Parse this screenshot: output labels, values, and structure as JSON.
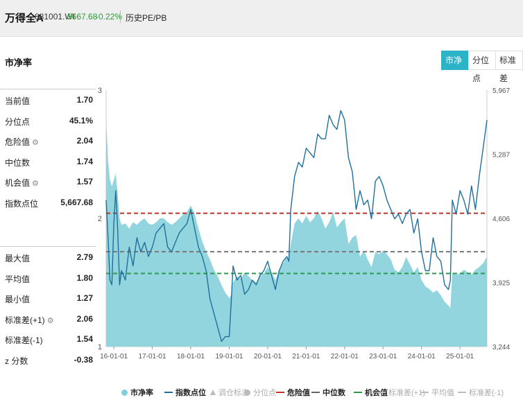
{
  "header": {
    "name": "万得全A",
    "code": "881001.WI",
    "price": "5667.68",
    "change": "-0.22%",
    "history_link": "历史PE/PB"
  },
  "section_title": "市净率",
  "tabs": [
    {
      "label": "市净率",
      "active": true
    },
    {
      "label": "分位点",
      "active": false
    },
    {
      "label": "标准差",
      "active": false
    }
  ],
  "stats_top": [
    {
      "label": "当前值",
      "value": "1.70",
      "gear": false
    },
    {
      "label": "分位点",
      "value": "45.1%",
      "gear": false
    },
    {
      "label": "危险值",
      "value": "2.04",
      "gear": true
    },
    {
      "label": "中位数",
      "value": "1.74",
      "gear": false
    },
    {
      "label": "机会值",
      "value": "1.57",
      "gear": true
    },
    {
      "label": "指数点位",
      "value": "5,667.68",
      "gear": false
    }
  ],
  "stats_bottom": [
    {
      "label": "最大值",
      "value": "2.79",
      "gear": false
    },
    {
      "label": "平均值",
      "value": "1.80",
      "gear": false
    },
    {
      "label": "最小值",
      "value": "1.27",
      "gear": false
    },
    {
      "label": "标准差(+1)",
      "value": "2.06",
      "gear": true
    },
    {
      "label": "标准差(-1)",
      "value": "1.54",
      "gear": false
    },
    {
      "label": "z 分数",
      "value": "-0.38",
      "gear": false
    }
  ],
  "legend": [
    {
      "label": "市净率",
      "type": "circle",
      "color": "#7fd0dc",
      "active": true
    },
    {
      "label": "指数点位",
      "type": "line",
      "color": "#1f6f9c",
      "active": true
    },
    {
      "label": "调仓标志",
      "type": "triangle",
      "color": "#bbbbbb",
      "active": false
    },
    {
      "label": "分位点",
      "type": "circle",
      "color": "#bbbbbb",
      "active": false
    },
    {
      "label": "危险值",
      "type": "dash",
      "color": "#c0322b",
      "active": true
    },
    {
      "label": "中位数",
      "type": "dash",
      "color": "#666666",
      "active": true
    },
    {
      "label": "机会值",
      "type": "dash",
      "color": "#2a9a4a",
      "active": true
    },
    {
      "label": "标准差(+1)",
      "type": "dash",
      "color": "#bbbbbb",
      "active": false
    },
    {
      "label": "平均值",
      "type": "dash",
      "color": "#bbbbbb",
      "active": false
    },
    {
      "label": "标准差(-1)",
      "type": "dash",
      "color": "#bbbbbb",
      "active": false
    }
  ],
  "chart_data": {
    "type": "area",
    "x_tick_labels": [
      "16-01-01",
      "17-01-01",
      "18-01-01",
      "19-01-01",
      "20-01-01",
      "21-01-01",
      "22-01-01",
      "23-01-01",
      "24-01-01",
      "25-01-01"
    ],
    "x_range": [
      2015.8,
      2025.7
    ],
    "left_axis": {
      "ticks": [
        "3",
        "2",
        "1"
      ],
      "range": [
        1,
        3
      ]
    },
    "right_axis": {
      "ticks": [
        "5,967",
        "5,287",
        "4,606",
        "3,925",
        "3,244"
      ],
      "range": [
        3244,
        5967
      ]
    },
    "reference_lines": [
      {
        "name": "危险值",
        "value": 2.04,
        "color": "#c0322b"
      },
      {
        "name": "中位数",
        "value": 1.74,
        "color": "#777777"
      },
      {
        "name": "机会值",
        "value": 1.57,
        "color": "#2a9a4a"
      }
    ],
    "series": [
      {
        "name": "市净率",
        "axis": "left",
        "color": "#8dd3dd",
        "x": [
          2015.8,
          2015.85,
          2015.9,
          2015.95,
          2016.0,
          2016.05,
          2016.1,
          2016.15,
          2016.2,
          2016.3,
          2016.4,
          2016.5,
          2016.6,
          2016.7,
          2016.8,
          2016.9,
          2017.0,
          2017.1,
          2017.2,
          2017.3,
          2017.4,
          2017.5,
          2017.6,
          2017.7,
          2017.8,
          2017.9,
          2018.0,
          2018.1,
          2018.2,
          2018.3,
          2018.4,
          2018.5,
          2018.6,
          2018.7,
          2018.8,
          2018.9,
          2019.0,
          2019.05,
          2019.1,
          2019.2,
          2019.3,
          2019.4,
          2019.5,
          2019.6,
          2019.7,
          2019.8,
          2019.9,
          2020.0,
          2020.1,
          2020.2,
          2020.3,
          2020.4,
          2020.5,
          2020.55,
          2020.6,
          2020.7,
          2020.8,
          2020.9,
          2021.0,
          2021.1,
          2021.2,
          2021.3,
          2021.4,
          2021.5,
          2021.6,
          2021.7,
          2021.8,
          2021.9,
          2022.0,
          2022.1,
          2022.2,
          2022.3,
          2022.4,
          2022.5,
          2022.6,
          2022.7,
          2022.8,
          2022.9,
          2023.0,
          2023.1,
          2023.2,
          2023.3,
          2023.4,
          2023.5,
          2023.6,
          2023.7,
          2023.8,
          2023.9,
          2024.0,
          2024.1,
          2024.2,
          2024.3,
          2024.4,
          2024.5,
          2024.6,
          2024.7,
          2024.75,
          2024.8,
          2024.9,
          2025.0,
          2025.1,
          2025.2,
          2025.3,
          2025.4,
          2025.5,
          2025.6,
          2025.7
        ],
        "values": [
          2.78,
          2.45,
          2.3,
          2.25,
          2.3,
          2.35,
          2.2,
          2.0,
          1.95,
          1.96,
          1.92,
          1.97,
          1.95,
          1.98,
          2.0,
          1.96,
          1.95,
          1.97,
          2.0,
          2.0,
          1.97,
          1.95,
          1.97,
          2.0,
          2.03,
          2.05,
          2.1,
          2.04,
          1.92,
          1.82,
          1.74,
          1.68,
          1.6,
          1.55,
          1.48,
          1.42,
          1.38,
          1.4,
          1.5,
          1.55,
          1.53,
          1.58,
          1.55,
          1.52,
          1.5,
          1.55,
          1.57,
          1.62,
          1.58,
          1.52,
          1.6,
          1.65,
          1.7,
          1.68,
          1.8,
          1.96,
          2.0,
          1.96,
          2.02,
          1.97,
          2.0,
          2.06,
          2.0,
          1.92,
          1.97,
          2.05,
          1.93,
          1.97,
          2.0,
          1.8,
          1.85,
          1.87,
          1.7,
          1.75,
          1.68,
          1.62,
          1.74,
          1.72,
          1.75,
          1.72,
          1.68,
          1.6,
          1.58,
          1.62,
          1.7,
          1.64,
          1.58,
          1.62,
          1.52,
          1.47,
          1.45,
          1.42,
          1.44,
          1.4,
          1.35,
          1.32,
          1.3,
          1.58,
          1.56,
          1.57,
          1.6,
          1.58,
          1.56,
          1.6,
          1.62,
          1.65,
          1.7
        ]
      },
      {
        "name": "指数点位",
        "axis": "right",
        "color": "#1f6f9c",
        "x": [
          2015.8,
          2015.85,
          2015.9,
          2015.95,
          2016.0,
          2016.05,
          2016.1,
          2016.15,
          2016.2,
          2016.3,
          2016.4,
          2016.5,
          2016.6,
          2016.7,
          2016.8,
          2016.9,
          2017.0,
          2017.1,
          2017.2,
          2017.3,
          2017.4,
          2017.5,
          2017.6,
          2017.7,
          2017.8,
          2017.9,
          2018.0,
          2018.1,
          2018.2,
          2018.3,
          2018.4,
          2018.5,
          2018.6,
          2018.7,
          2018.8,
          2018.9,
          2019.0,
          2019.05,
          2019.1,
          2019.2,
          2019.3,
          2019.4,
          2019.5,
          2019.6,
          2019.7,
          2019.8,
          2019.9,
          2020.0,
          2020.1,
          2020.2,
          2020.3,
          2020.4,
          2020.5,
          2020.55,
          2020.6,
          2020.7,
          2020.8,
          2020.9,
          2021.0,
          2021.1,
          2021.2,
          2021.3,
          2021.4,
          2021.5,
          2021.6,
          2021.7,
          2021.8,
          2021.9,
          2022.0,
          2022.1,
          2022.2,
          2022.3,
          2022.4,
          2022.5,
          2022.6,
          2022.7,
          2022.8,
          2022.9,
          2023.0,
          2023.1,
          2023.2,
          2023.3,
          2023.4,
          2023.5,
          2023.6,
          2023.7,
          2023.8,
          2023.9,
          2024.0,
          2024.1,
          2024.2,
          2024.3,
          2024.4,
          2024.5,
          2024.6,
          2024.7,
          2024.75,
          2024.8,
          2024.9,
          2025.0,
          2025.1,
          2025.2,
          2025.3,
          2025.4,
          2025.5,
          2025.6,
          2025.7
        ],
        "values": [
          4800,
          4400,
          3950,
          3900,
          4550,
          4900,
          4500,
          3900,
          4050,
          3950,
          4300,
          4100,
          4400,
          4250,
          4350,
          4200,
          4300,
          4450,
          4500,
          4550,
          4300,
          4250,
          4350,
          4450,
          4500,
          4550,
          4700,
          4500,
          4300,
          4200,
          4050,
          3750,
          3600,
          3450,
          3300,
          3350,
          3350,
          3700,
          4100,
          3950,
          4000,
          3800,
          3850,
          3950,
          3900,
          4000,
          4050,
          4150,
          4000,
          3850,
          4050,
          4150,
          4200,
          4150,
          4700,
          5050,
          5200,
          5150,
          5350,
          5300,
          5250,
          5500,
          5450,
          5450,
          5700,
          5600,
          5550,
          5750,
          5650,
          5250,
          5100,
          4700,
          4900,
          4750,
          4800,
          4600,
          5000,
          5050,
          4950,
          4800,
          4700,
          4600,
          4650,
          4550,
          4650,
          4700,
          4450,
          4600,
          4250,
          4050,
          4050,
          4400,
          4200,
          4150,
          3900,
          3850,
          3950,
          4800,
          4650,
          4900,
          4800,
          4650,
          4950,
          4700,
          5050,
          5350,
          5650
        ]
      }
    ]
  }
}
